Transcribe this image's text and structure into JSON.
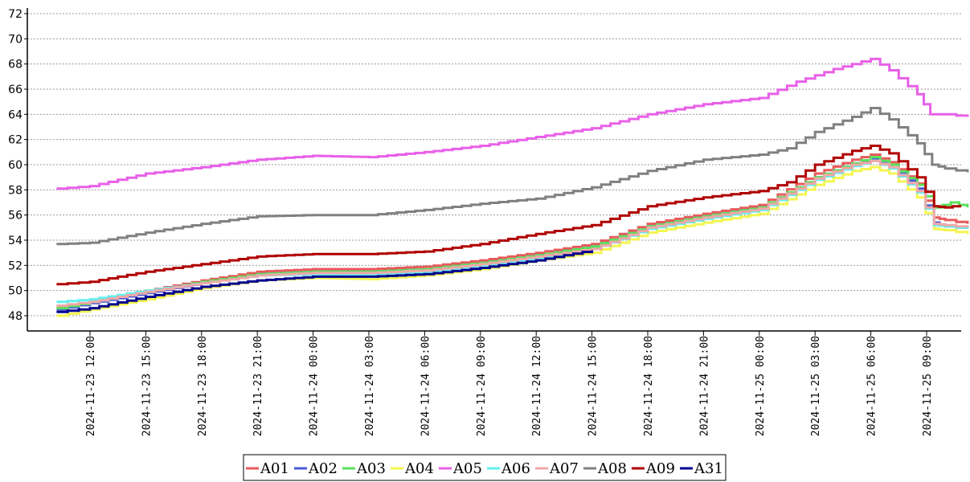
{
  "chart_data": {
    "type": "line",
    "title": "",
    "xlabel": "",
    "ylabel": "",
    "ylim": [
      47,
      72
    ],
    "yticks": [
      48,
      50,
      52,
      54,
      56,
      58,
      60,
      62,
      64,
      66,
      68,
      70,
      72
    ],
    "grid": "horizontal-dashed",
    "legend_position": "bottom-center",
    "x_ticks": [
      {
        "t": 12,
        "label": "2024-11-23 12:00"
      },
      {
        "t": 15,
        "label": "2024-11-23 15:00"
      },
      {
        "t": 18,
        "label": "2024-11-23 18:00"
      },
      {
        "t": 21,
        "label": "2024-11-23 21:00"
      },
      {
        "t": 24,
        "label": "2024-11-24 00:00"
      },
      {
        "t": 27,
        "label": "2024-11-24 03:00"
      },
      {
        "t": 30,
        "label": "2024-11-24 06:00"
      },
      {
        "t": 33,
        "label": "2024-11-24 09:00"
      },
      {
        "t": 36,
        "label": "2024-11-24 12:00"
      },
      {
        "t": 39,
        "label": "2024-11-24 15:00"
      },
      {
        "t": 42,
        "label": "2024-11-24 18:00"
      },
      {
        "t": 45,
        "label": "2024-11-24 21:00"
      },
      {
        "t": 48,
        "label": "2024-11-25 00:00"
      },
      {
        "t": 51,
        "label": "2024-11-25 03:00"
      },
      {
        "t": 54,
        "label": "2024-11-25 06:00"
      },
      {
        "t": 57,
        "label": "2024-11-25 09:00"
      }
    ],
    "x_range": [
      9.2,
      60.3
    ],
    "series": [
      {
        "name": "A01",
        "color": "#e85a5a",
        "points": [
          [
            10.2,
            48.7
          ],
          [
            12,
            49.1
          ],
          [
            15,
            50.0
          ],
          [
            18,
            50.8
          ],
          [
            21,
            51.5
          ],
          [
            24,
            51.7
          ],
          [
            27,
            51.7
          ],
          [
            30,
            51.9
          ],
          [
            33,
            52.4
          ],
          [
            36,
            53.0
          ],
          [
            39,
            53.7
          ],
          [
            42,
            55.3
          ],
          [
            45,
            56.1
          ],
          [
            48,
            56.8
          ],
          [
            51,
            59.3
          ],
          [
            53,
            60.4
          ],
          [
            54,
            60.8
          ],
          [
            55,
            60.2
          ],
          [
            56.5,
            58.5
          ],
          [
            57.4,
            55.8
          ],
          [
            58,
            55.6
          ],
          [
            59.2,
            55.3
          ]
        ]
      },
      {
        "name": "A02",
        "color": "#4a5ad8",
        "points": [
          [
            10.2,
            48.5
          ],
          [
            12,
            49.0
          ],
          [
            15,
            49.8
          ],
          [
            18,
            50.6
          ],
          [
            21,
            51.3
          ],
          [
            24,
            51.5
          ],
          [
            27,
            51.5
          ],
          [
            30,
            51.7
          ],
          [
            33,
            52.2
          ],
          [
            36,
            52.8
          ],
          [
            39,
            53.5
          ],
          [
            42,
            55.1
          ],
          [
            45,
            55.9
          ],
          [
            48,
            56.6
          ],
          [
            51,
            59.0
          ],
          [
            53,
            60.1
          ],
          [
            54,
            60.5
          ],
          [
            55,
            60.0
          ],
          [
            56.5,
            58.1
          ],
          [
            57.4,
            55.4
          ],
          [
            58,
            55.1
          ],
          [
            59.2,
            54.9
          ]
        ]
      },
      {
        "name": "A03",
        "color": "#5ae05a",
        "points": [
          [
            10.2,
            48.6
          ],
          [
            12,
            49.1
          ],
          [
            15,
            49.9
          ],
          [
            18,
            50.7
          ],
          [
            21,
            51.3
          ],
          [
            24,
            51.5
          ],
          [
            27,
            51.5
          ],
          [
            30,
            51.7
          ],
          [
            33,
            52.2
          ],
          [
            36,
            52.8
          ],
          [
            39,
            53.5
          ],
          [
            42,
            55.1
          ],
          [
            45,
            55.9
          ],
          [
            48,
            56.6
          ],
          [
            51,
            59.0
          ],
          [
            53,
            60.1
          ],
          [
            54,
            60.6
          ],
          [
            55,
            60.0
          ],
          [
            56.5,
            58.4
          ],
          [
            57.4,
            56.6
          ],
          [
            58.3,
            57.0
          ],
          [
            59.2,
            56.6
          ]
        ]
      },
      {
        "name": "A04",
        "color": "#f5f550",
        "points": [
          [
            10.2,
            48.0
          ],
          [
            12,
            48.5
          ],
          [
            15,
            49.3
          ],
          [
            18,
            50.2
          ],
          [
            21,
            50.8
          ],
          [
            24,
            51.0
          ],
          [
            27,
            50.9
          ],
          [
            30,
            51.2
          ],
          [
            33,
            51.7
          ],
          [
            36,
            52.4
          ],
          [
            39,
            53.0
          ],
          [
            42,
            54.6
          ],
          [
            45,
            55.4
          ],
          [
            48,
            56.1
          ],
          [
            51,
            58.4
          ],
          [
            53,
            59.5
          ],
          [
            54,
            59.8
          ],
          [
            55,
            59.3
          ],
          [
            56.5,
            57.4
          ],
          [
            57.4,
            54.9
          ],
          [
            58,
            54.8
          ],
          [
            59.2,
            54.5
          ]
        ]
      },
      {
        "name": "A05",
        "color": "#e860e8",
        "points": [
          [
            10.2,
            58.1
          ],
          [
            12,
            58.3
          ],
          [
            15,
            59.3
          ],
          [
            18,
            59.8
          ],
          [
            21,
            60.4
          ],
          [
            24,
            60.7
          ],
          [
            27,
            60.6
          ],
          [
            30,
            61.0
          ],
          [
            33,
            61.5
          ],
          [
            36,
            62.2
          ],
          [
            39,
            62.9
          ],
          [
            42,
            64.0
          ],
          [
            45,
            64.8
          ],
          [
            48,
            65.3
          ],
          [
            50,
            66.6
          ],
          [
            52,
            67.6
          ],
          [
            54,
            68.4
          ],
          [
            55,
            67.5
          ],
          [
            56.5,
            65.6
          ],
          [
            57.2,
            64.0
          ],
          [
            58,
            64.0
          ],
          [
            59.2,
            63.8
          ]
        ]
      },
      {
        "name": "A06",
        "color": "#60f0f0",
        "points": [
          [
            10.2,
            49.1
          ],
          [
            12,
            49.3
          ],
          [
            15,
            50.0
          ],
          [
            18,
            50.6
          ],
          [
            21,
            51.2
          ],
          [
            24,
            51.3
          ],
          [
            27,
            51.3
          ],
          [
            30,
            51.5
          ],
          [
            33,
            52.0
          ],
          [
            36,
            52.6
          ],
          [
            39,
            53.3
          ],
          [
            42,
            54.9
          ],
          [
            45,
            55.7
          ],
          [
            48,
            56.4
          ],
          [
            51,
            58.8
          ],
          [
            53,
            59.9
          ],
          [
            54,
            60.3
          ],
          [
            55,
            59.7
          ],
          [
            56.5,
            57.8
          ],
          [
            57.4,
            55.2
          ],
          [
            58,
            55.1
          ],
          [
            59.2,
            54.9
          ]
        ]
      },
      {
        "name": "A07",
        "color": "#f0a8a8",
        "points": [
          [
            10.2,
            48.8
          ],
          [
            12,
            49.1
          ],
          [
            15,
            49.9
          ],
          [
            18,
            50.6
          ],
          [
            21,
            51.2
          ],
          [
            24,
            51.4
          ],
          [
            27,
            51.4
          ],
          [
            30,
            51.6
          ],
          [
            33,
            52.1
          ],
          [
            36,
            52.7
          ],
          [
            39,
            53.3
          ],
          [
            42,
            55.0
          ],
          [
            45,
            55.8
          ],
          [
            48,
            56.5
          ],
          [
            51,
            58.9
          ],
          [
            53,
            60.0
          ],
          [
            54,
            60.3
          ],
          [
            55,
            59.8
          ],
          [
            56.5,
            57.9
          ],
          [
            57.4,
            55.3
          ],
          [
            58,
            55.2
          ],
          [
            59.2,
            55.0
          ]
        ]
      },
      {
        "name": "A08",
        "color": "#808080",
        "points": [
          [
            10.2,
            53.7
          ],
          [
            12,
            53.8
          ],
          [
            15,
            54.6
          ],
          [
            18,
            55.3
          ],
          [
            21,
            55.9
          ],
          [
            24,
            56.0
          ],
          [
            27,
            56.0
          ],
          [
            30,
            56.4
          ],
          [
            33,
            56.9
          ],
          [
            36,
            57.3
          ],
          [
            39,
            58.2
          ],
          [
            42,
            59.5
          ],
          [
            45,
            60.4
          ],
          [
            48,
            60.8
          ],
          [
            49.5,
            61.3
          ],
          [
            51,
            62.6
          ],
          [
            53,
            63.8
          ],
          [
            54,
            64.5
          ],
          [
            55,
            63.6
          ],
          [
            56.5,
            61.7
          ],
          [
            57.3,
            60.0
          ],
          [
            58,
            59.7
          ],
          [
            59.2,
            59.4
          ]
        ]
      },
      {
        "name": "A09",
        "color": "#b00000",
        "points": [
          [
            10.2,
            50.5
          ],
          [
            12,
            50.7
          ],
          [
            15,
            51.5
          ],
          [
            18,
            52.1
          ],
          [
            21,
            52.7
          ],
          [
            24,
            52.9
          ],
          [
            27,
            52.9
          ],
          [
            30,
            53.1
          ],
          [
            33,
            53.7
          ],
          [
            36,
            54.5
          ],
          [
            39,
            55.2
          ],
          [
            42,
            56.7
          ],
          [
            45,
            57.4
          ],
          [
            48,
            57.9
          ],
          [
            49.5,
            58.6
          ],
          [
            51,
            60.0
          ],
          [
            53,
            61.1
          ],
          [
            54,
            61.5
          ],
          [
            55,
            60.9
          ],
          [
            56.5,
            59.0
          ],
          [
            57.4,
            56.7
          ],
          [
            58,
            56.6
          ],
          [
            58.8,
            56.8
          ]
        ]
      },
      {
        "name": "A31",
        "color": "#000090",
        "points": [
          [
            10.2,
            48.3
          ],
          [
            12,
            48.6
          ],
          [
            15,
            49.5
          ],
          [
            18,
            50.3
          ],
          [
            21,
            50.8
          ],
          [
            24,
            51.1
          ],
          [
            27,
            51.1
          ],
          [
            30,
            51.3
          ],
          [
            33,
            51.8
          ],
          [
            36,
            52.4
          ],
          [
            39,
            53.2
          ]
        ]
      }
    ]
  }
}
